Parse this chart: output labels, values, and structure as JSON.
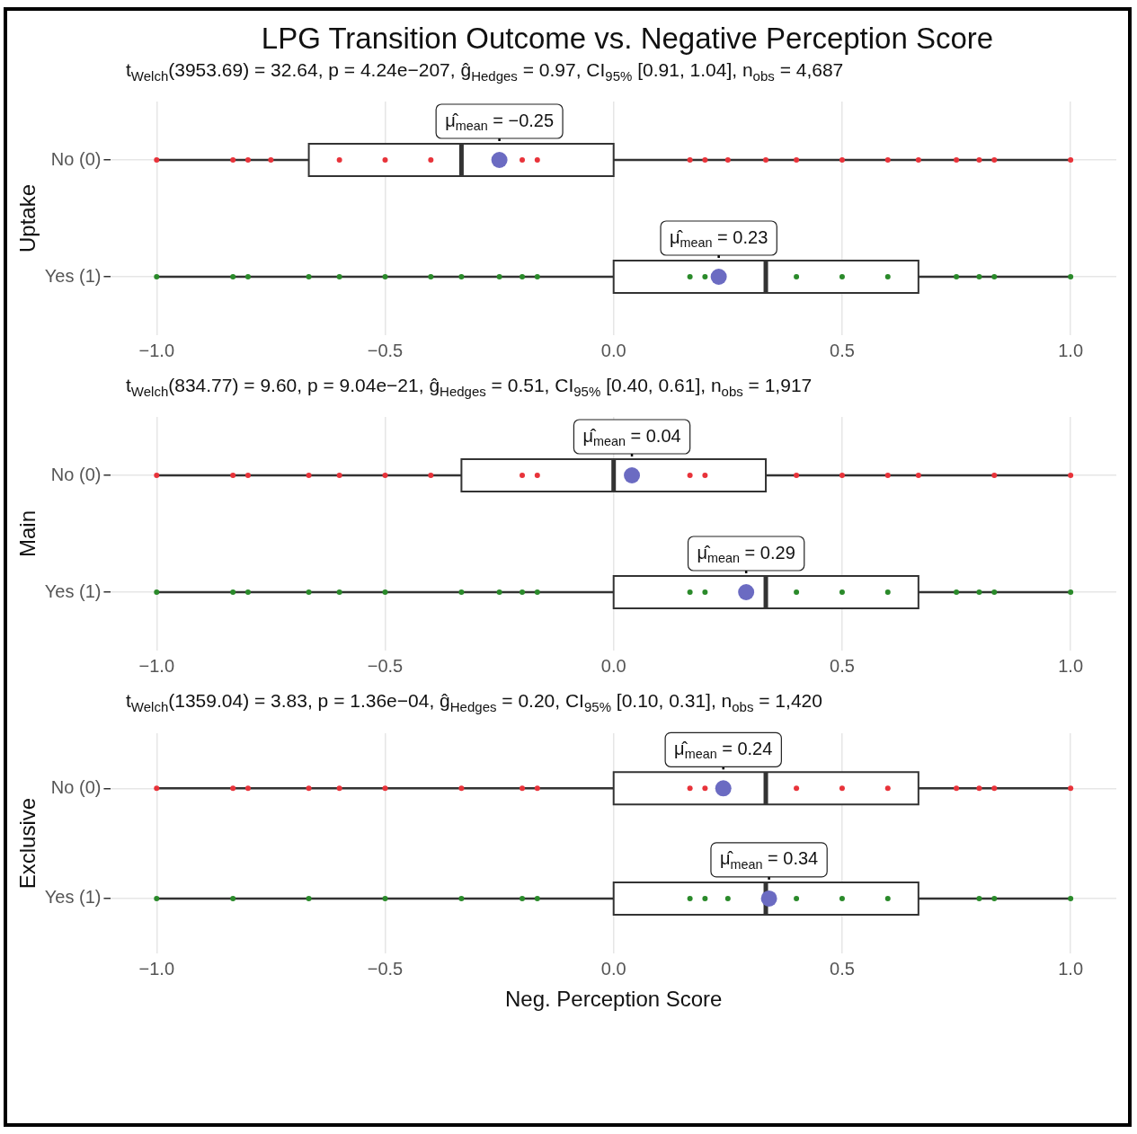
{
  "chart_data": [
    {
      "type": "box",
      "title": "LPG Transition Outcome vs. Negative Perception Score",
      "subtitle": "t$_{Welch}$(3953.69) = 32.64, p = 4.24e−207, ĝ$_{Hedges}$ = 0.97, CI$_{95%}$ [0.91, 1.04], n$_{obs}$ = 4,687",
      "ylabel": "Uptake",
      "orientation": "horizontal",
      "categories": [
        "No (0)",
        "Yes (1)"
      ],
      "boxes": [
        {
          "low": -1,
          "q1": -0.667,
          "median": -0.333,
          "q3": 0,
          "high": 1,
          "mean": -0.25
        },
        {
          "low": -1,
          "q1": 0,
          "median": 0.333,
          "q3": 0.667,
          "high": 1,
          "mean": 0.23
        }
      ],
      "series": [
        {
          "type": "scatter",
          "color": "#e8333a",
          "x": [
            "No (0)",
            "No (0)",
            "No (0)",
            "No (0)",
            "No (0)",
            "No (0)",
            "No (0)",
            "No (0)",
            "No (0)",
            "No (0)",
            "No (0)",
            "No (0)",
            "No (0)",
            "No (0)",
            "No (0)",
            "No (0)",
            "No (0)",
            "No (0)",
            "No (0)",
            "No (0)",
            "No (0)"
          ],
          "values": [
            -1,
            -0.833,
            -0.8,
            -0.75,
            -0.6,
            -0.5,
            -0.4,
            -0.2,
            -0.167,
            0.167,
            0.2,
            0.25,
            0.333,
            0.4,
            0.5,
            0.6,
            0.667,
            0.75,
            0.8,
            0.833,
            1
          ]
        },
        {
          "type": "scatter",
          "color": "#2a8a2a",
          "x": [
            "Yes (1)",
            "Yes (1)",
            "Yes (1)",
            "Yes (1)",
            "Yes (1)",
            "Yes (1)",
            "Yes (1)",
            "Yes (1)",
            "Yes (1)",
            "Yes (1)",
            "Yes (1)",
            "Yes (1)",
            "Yes (1)",
            "Yes (1)",
            "Yes (1)",
            "Yes (1)",
            "Yes (1)",
            "Yes (1)",
            "Yes (1)",
            "Yes (1)"
          ],
          "values": [
            -1,
            -0.833,
            -0.8,
            -0.667,
            -0.6,
            -0.5,
            -0.4,
            -0.333,
            -0.25,
            -0.2,
            -0.167,
            0.167,
            0.2,
            0.4,
            0.5,
            0.6,
            0.75,
            0.8,
            0.833,
            1
          ]
        }
      ],
      "annotations": [
        "μ̂$_{mean}$ = −0.25",
        "μ̂$_{mean}$ = 0.23"
      ],
      "xlim": [
        -1.1,
        1.1
      ],
      "xticks": [
        {
          "value": -1,
          "label": "−1.0"
        },
        {
          "value": -0.5,
          "label": "−0.5"
        },
        {
          "value": 0,
          "label": "0.0"
        },
        {
          "value": 0.5,
          "label": "0.5"
        },
        {
          "value": 1,
          "label": "1.0"
        }
      ],
      "grid": true
    },
    {
      "type": "box",
      "subtitle": "t$_{Welch}$(834.77) = 9.60, p = 9.04e−21, ĝ$_{Hedges}$ = 0.51, CI$_{95%}$ [0.40, 0.61], n$_{obs}$ = 1,917",
      "ylabel": "Main",
      "orientation": "horizontal",
      "categories": [
        "No (0)",
        "Yes (1)"
      ],
      "boxes": [
        {
          "low": -1,
          "q1": -0.333,
          "median": 0,
          "q3": 0.333,
          "high": 1,
          "mean": 0.04
        },
        {
          "low": -1,
          "q1": 0,
          "median": 0.333,
          "q3": 0.667,
          "high": 1,
          "mean": 0.29
        }
      ],
      "series": [
        {
          "type": "scatter",
          "color": "#e8333a",
          "x": [
            "No (0)",
            "No (0)",
            "No (0)",
            "No (0)",
            "No (0)",
            "No (0)",
            "No (0)",
            "No (0)",
            "No (0)",
            "No (0)",
            "No (0)",
            "No (0)",
            "No (0)",
            "No (0)",
            "No (0)",
            "No (0)",
            "No (0)"
          ],
          "values": [
            -1,
            -0.833,
            -0.8,
            -0.667,
            -0.6,
            -0.5,
            -0.4,
            -0.2,
            -0.167,
            0.167,
            0.2,
            0.4,
            0.5,
            0.6,
            0.667,
            0.833,
            1
          ]
        },
        {
          "type": "scatter",
          "color": "#2a8a2a",
          "x": [
            "Yes (1)",
            "Yes (1)",
            "Yes (1)",
            "Yes (1)",
            "Yes (1)",
            "Yes (1)",
            "Yes (1)",
            "Yes (1)",
            "Yes (1)",
            "Yes (1)",
            "Yes (1)",
            "Yes (1)",
            "Yes (1)",
            "Yes (1)",
            "Yes (1)",
            "Yes (1)",
            "Yes (1)",
            "Yes (1)",
            "Yes (1)"
          ],
          "values": [
            -1,
            -0.833,
            -0.8,
            -0.667,
            -0.6,
            -0.5,
            -0.333,
            -0.25,
            -0.2,
            -0.167,
            0.167,
            0.2,
            0.4,
            0.5,
            0.6,
            0.75,
            0.8,
            0.833,
            1
          ]
        }
      ],
      "annotations": [
        "μ̂$_{mean}$ = 0.04",
        "μ̂$_{mean}$ = 0.29"
      ],
      "xlim": [
        -1.1,
        1.1
      ],
      "xticks": [
        {
          "value": -1,
          "label": "−1.0"
        },
        {
          "value": -0.5,
          "label": "−0.5"
        },
        {
          "value": 0,
          "label": "0.0"
        },
        {
          "value": 0.5,
          "label": "0.5"
        },
        {
          "value": 1,
          "label": "1.0"
        }
      ],
      "grid": true
    },
    {
      "type": "box",
      "subtitle": "t$_{Welch}$(1359.04) = 3.83, p = 1.36e−04, ĝ$_{Hedges}$ = 0.20, CI$_{95%}$ [0.10, 0.31], n$_{obs}$ = 1,420",
      "ylabel": "Exclusive",
      "xlabel": "Neg. Perception Score",
      "orientation": "horizontal",
      "categories": [
        "No (0)",
        "Yes (1)"
      ],
      "boxes": [
        {
          "low": -1,
          "q1": 0,
          "median": 0.333,
          "q3": 0.667,
          "high": 1,
          "mean": 0.24
        },
        {
          "low": -1,
          "q1": 0,
          "median": 0.333,
          "q3": 0.667,
          "high": 1,
          "mean": 0.34
        }
      ],
      "series": [
        {
          "type": "scatter",
          "color": "#e8333a",
          "x": [
            "No (0)",
            "No (0)",
            "No (0)",
            "No (0)",
            "No (0)",
            "No (0)",
            "No (0)",
            "No (0)",
            "No (0)",
            "No (0)",
            "No (0)",
            "No (0)",
            "No (0)",
            "No (0)",
            "No (0)",
            "No (0)",
            "No (0)",
            "No (0)"
          ],
          "values": [
            -1,
            -0.833,
            -0.8,
            -0.667,
            -0.6,
            -0.5,
            -0.333,
            -0.2,
            -0.167,
            0.167,
            0.2,
            0.4,
            0.5,
            0.6,
            0.75,
            0.8,
            0.833,
            1
          ]
        },
        {
          "type": "scatter",
          "color": "#2a8a2a",
          "x": [
            "Yes (1)",
            "Yes (1)",
            "Yes (1)",
            "Yes (1)",
            "Yes (1)",
            "Yes (1)",
            "Yes (1)",
            "Yes (1)",
            "Yes (1)",
            "Yes (1)",
            "Yes (1)",
            "Yes (1)",
            "Yes (1)",
            "Yes (1)",
            "Yes (1)",
            "Yes (1)"
          ],
          "values": [
            -1,
            -0.833,
            -0.667,
            -0.5,
            -0.333,
            -0.2,
            -0.167,
            0.167,
            0.2,
            0.25,
            0.4,
            0.5,
            0.6,
            0.8,
            0.833,
            1
          ]
        }
      ],
      "annotations": [
        "μ̂$_{mean}$ = 0.24",
        "μ̂$_{mean}$ = 0.34"
      ],
      "xlim": [
        -1.1,
        1.1
      ],
      "xticks": [
        {
          "value": -1,
          "label": "−1.0"
        },
        {
          "value": -0.5,
          "label": "−0.5"
        },
        {
          "value": 0,
          "label": "0.0"
        },
        {
          "value": 0.5,
          "label": "0.5"
        },
        {
          "value": 1,
          "label": "1.0"
        }
      ],
      "grid": true
    }
  ]
}
